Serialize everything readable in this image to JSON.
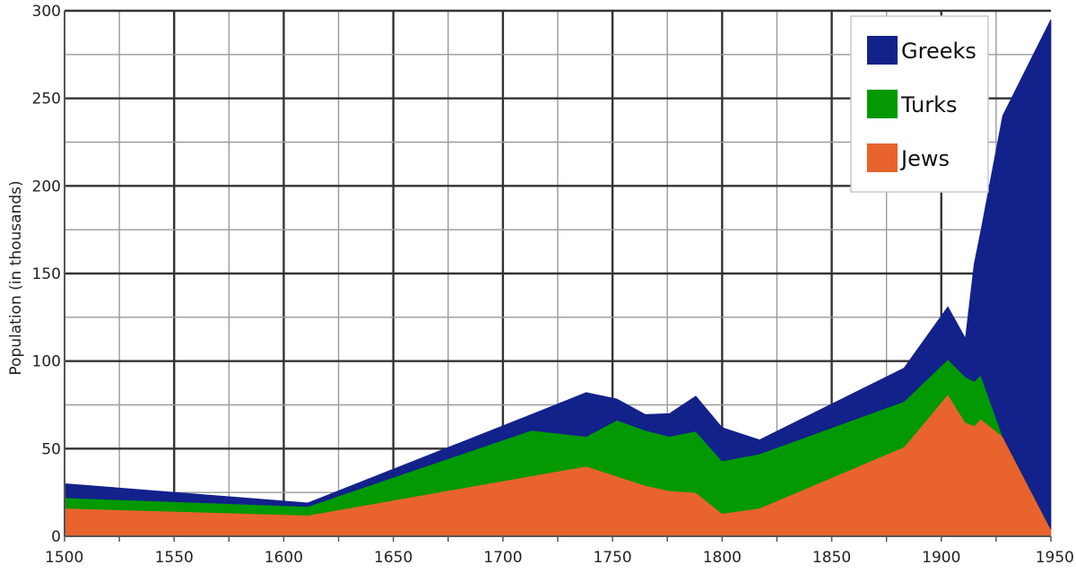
{
  "chart_data": {
    "type": "area",
    "stacked": true,
    "title": "",
    "xlabel": "",
    "ylabel": "Population (in thousands)",
    "xlim": [
      1500,
      1950
    ],
    "ylim": [
      0,
      300
    ],
    "x_ticks": [
      1500,
      1550,
      1600,
      1650,
      1700,
      1750,
      1800,
      1850,
      1900,
      1950
    ],
    "y_ticks": [
      0,
      50,
      100,
      150,
      200,
      250,
      300
    ],
    "grid": true,
    "legend_position": "top-right",
    "series": [
      {
        "name": "Jews",
        "color": "#e8642c",
        "points": [
          [
            1500,
            16
          ],
          [
            1611,
            12
          ],
          [
            1738,
            40
          ],
          [
            1765,
            29
          ],
          [
            1776,
            26
          ],
          [
            1788,
            25
          ],
          [
            1800,
            13
          ],
          [
            1817,
            16
          ],
          [
            1883,
            51
          ],
          [
            1903,
            81
          ],
          [
            1911,
            65
          ],
          [
            1915,
            63
          ],
          [
            1918,
            67
          ],
          [
            1928,
            57
          ],
          [
            1950,
            4
          ]
        ]
      },
      {
        "name": "Turks",
        "color": "#029902",
        "points": [
          [
            1500,
            6
          ],
          [
            1611,
            5
          ],
          [
            1713,
            26
          ],
          [
            1738,
            17
          ],
          [
            1752,
            32
          ],
          [
            1776,
            31
          ],
          [
            1788,
            35
          ],
          [
            1800,
            30
          ],
          [
            1817,
            31
          ],
          [
            1883,
            26
          ],
          [
            1903,
            20
          ],
          [
            1911,
            26
          ],
          [
            1918,
            25
          ],
          [
            1928,
            0
          ],
          [
            1950,
            0
          ]
        ]
      },
      {
        "name": "Greeks",
        "color": "#13218b",
        "points": [
          [
            1500,
            8
          ],
          [
            1611,
            2
          ],
          [
            1713,
            9
          ],
          [
            1738,
            25
          ],
          [
            1752,
            12
          ],
          [
            1765,
            9
          ],
          [
            1776,
            13
          ],
          [
            1788,
            20
          ],
          [
            1800,
            19
          ],
          [
            1817,
            8
          ],
          [
            1883,
            19
          ],
          [
            1903,
            30
          ],
          [
            1911,
            22
          ],
          [
            1915,
            67
          ],
          [
            1918,
            82
          ],
          [
            1928,
            183
          ],
          [
            1950,
            291
          ]
        ]
      }
    ],
    "legend": [
      "Greeks",
      "Turks",
      "Jews"
    ]
  }
}
